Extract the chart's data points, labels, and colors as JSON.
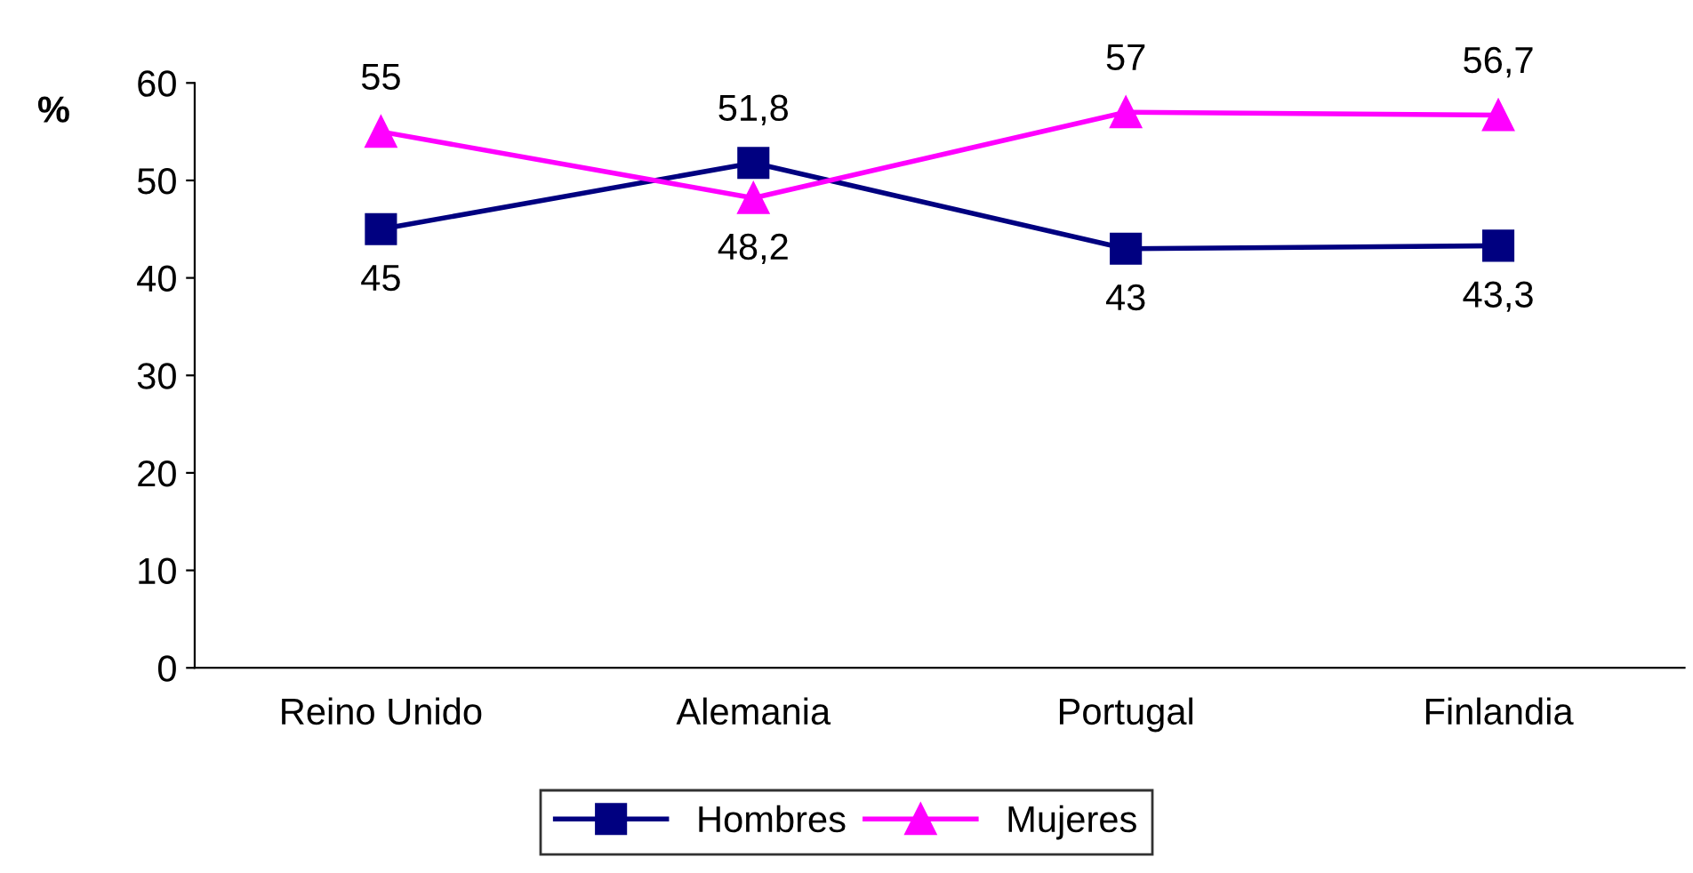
{
  "chart_data": {
    "type": "line",
    "ylabel": "%",
    "categories": [
      "Reino Unido",
      "Alemania",
      "Portugal",
      "Finlandia"
    ],
    "series": [
      {
        "name": "Hombres",
        "color": "#000080",
        "marker": "square",
        "values": [
          45,
          51.8,
          43,
          43.3
        ],
        "value_labels": [
          "45",
          "51,8",
          "43",
          "43,3"
        ]
      },
      {
        "name": "Mujeres",
        "color": "#ff00ff",
        "marker": "triangle",
        "values": [
          55,
          48.2,
          57,
          56.7
        ],
        "value_labels": [
          "55",
          "48,2",
          "57",
          "56,7"
        ]
      }
    ],
    "ylim": [
      0,
      60
    ],
    "yticks": [
      0,
      10,
      20,
      30,
      40,
      50,
      60
    ],
    "grid": false,
    "legend": "bottom"
  }
}
